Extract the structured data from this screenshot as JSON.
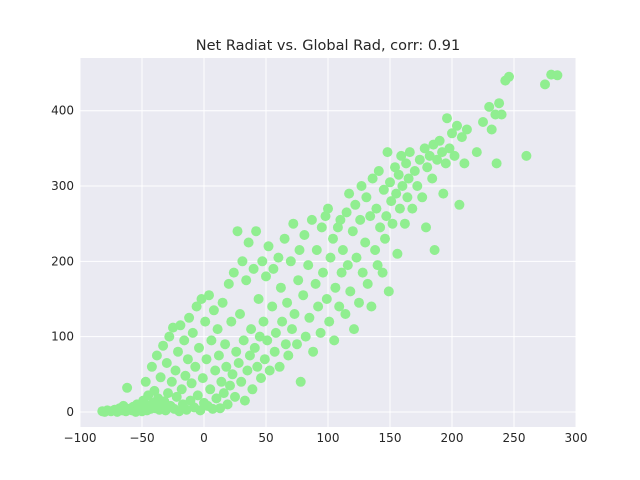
{
  "chart_data": {
    "type": "scatter",
    "title": "Net Radiat vs. Global Rad, corr: 0.91",
    "xlabel": "",
    "ylabel": "",
    "xlim": [
      -100,
      300
    ],
    "ylim": [
      -20,
      470
    ],
    "x_ticks": [
      -100,
      -50,
      0,
      50,
      100,
      150,
      200,
      250,
      300
    ],
    "y_ticks": [
      0,
      100,
      200,
      300,
      400
    ],
    "x_tick_labels": [
      "−100",
      "−50",
      "0",
      "50",
      "100",
      "150",
      "200",
      "250",
      "300"
    ],
    "y_tick_labels": [
      "0",
      "100",
      "200",
      "300",
      "400"
    ],
    "grid": true,
    "background": "#eaeaf2",
    "grid_color": "#ffffff",
    "point_color": "#90ee90",
    "series": [
      {
        "points": [
          [
            -82,
            1
          ],
          [
            -80,
            0
          ],
          [
            -78,
            2
          ],
          [
            -75,
            1
          ],
          [
            -72,
            3
          ],
          [
            -70,
            0
          ],
          [
            -68,
            5
          ],
          [
            -66,
            2
          ],
          [
            -65,
            8
          ],
          [
            -63,
            1
          ],
          [
            -62,
            32
          ],
          [
            -60,
            4
          ],
          [
            -58,
            2
          ],
          [
            -57,
            7
          ],
          [
            -55,
            0
          ],
          [
            -54,
            10
          ],
          [
            -52,
            3
          ],
          [
            -50,
            1
          ],
          [
            -49,
            15
          ],
          [
            -48,
            6
          ],
          [
            -47,
            40
          ],
          [
            -46,
            2
          ],
          [
            -45,
            22
          ],
          [
            -44,
            9
          ],
          [
            -43,
            4
          ],
          [
            -42,
            60
          ],
          [
            -41,
            12
          ],
          [
            -40,
            28
          ],
          [
            -39,
            5
          ],
          [
            -38,
            75
          ],
          [
            -37,
            18
          ],
          [
            -36,
            3
          ],
          [
            -35,
            46
          ],
          [
            -34,
            9
          ],
          [
            -33,
            88
          ],
          [
            -32,
            14
          ],
          [
            -31,
            2
          ],
          [
            -30,
            65
          ],
          [
            -29,
            25
          ],
          [
            -28,
            100
          ],
          [
            -27,
            8
          ],
          [
            -26,
            40
          ],
          [
            -25,
            112
          ],
          [
            -24,
            4
          ],
          [
            -23,
            55
          ],
          [
            -22,
            20
          ],
          [
            -21,
            80
          ],
          [
            -20,
            1
          ],
          [
            -19,
            115
          ],
          [
            -18,
            30
          ],
          [
            -17,
            10
          ],
          [
            -16,
            95
          ],
          [
            -15,
            48
          ],
          [
            -14,
            3
          ],
          [
            -13,
            70
          ],
          [
            -12,
            125
          ],
          [
            -11,
            15
          ],
          [
            -10,
            38
          ],
          [
            -9,
            105
          ],
          [
            -8,
            6
          ],
          [
            -7,
            60
          ],
          [
            -6,
            140
          ],
          [
            -5,
            22
          ],
          [
            -4,
            85
          ],
          [
            -3,
            2
          ],
          [
            -2,
            150
          ],
          [
            -1,
            45
          ],
          [
            0,
            12
          ],
          [
            1,
            120
          ],
          [
            2,
            70
          ],
          [
            3,
            8
          ],
          [
            4,
            155
          ],
          [
            5,
            30
          ],
          [
            6,
            95
          ],
          [
            7,
            4
          ],
          [
            8,
            135
          ],
          [
            9,
            55
          ],
          [
            10,
            18
          ],
          [
            11,
            110
          ],
          [
            12,
            75
          ],
          [
            13,
            5
          ],
          [
            14,
            40
          ],
          [
            15,
            145
          ],
          [
            16,
            25
          ],
          [
            17,
            90
          ],
          [
            18,
            60
          ],
          [
            19,
            10
          ],
          [
            20,
            170
          ],
          [
            21,
            35
          ],
          [
            22,
            120
          ],
          [
            23,
            50
          ],
          [
            24,
            185
          ],
          [
            25,
            20
          ],
          [
            26,
            80
          ],
          [
            27,
            240
          ],
          [
            28,
            65
          ],
          [
            29,
            130
          ],
          [
            30,
            40
          ],
          [
            31,
            200
          ],
          [
            32,
            95
          ],
          [
            33,
            15
          ],
          [
            34,
            175
          ],
          [
            35,
            55
          ],
          [
            36,
            225
          ],
          [
            37,
            75
          ],
          [
            38,
            110
          ],
          [
            39,
            30
          ],
          [
            40,
            190
          ],
          [
            41,
            85
          ],
          [
            42,
            240
          ],
          [
            43,
            60
          ],
          [
            44,
            150
          ],
          [
            45,
            100
          ],
          [
            46,
            45
          ],
          [
            47,
            200
          ],
          [
            48,
            120
          ],
          [
            49,
            70
          ],
          [
            50,
            180
          ],
          [
            51,
            95
          ],
          [
            52,
            220
          ],
          [
            53,
            55
          ],
          [
            55,
            140
          ],
          [
            56,
            190
          ],
          [
            57,
            80
          ],
          [
            58,
            105
          ],
          [
            60,
            205
          ],
          [
            61,
            60
          ],
          [
            62,
            165
          ],
          [
            63,
            120
          ],
          [
            65,
            230
          ],
          [
            66,
            90
          ],
          [
            67,
            145
          ],
          [
            68,
            75
          ],
          [
            70,
            200
          ],
          [
            71,
            110
          ],
          [
            72,
            250
          ],
          [
            73,
            130
          ],
          [
            75,
            90
          ],
          [
            76,
            175
          ],
          [
            77,
            215
          ],
          [
            78,
            40
          ],
          [
            80,
            155
          ],
          [
            81,
            235
          ],
          [
            82,
            100
          ],
          [
            84,
            195
          ],
          [
            85,
            125
          ],
          [
            87,
            255
          ],
          [
            88,
            80
          ],
          [
            90,
            170
          ],
          [
            91,
            215
          ],
          [
            92,
            140
          ],
          [
            94,
            105
          ],
          [
            95,
            245
          ],
          [
            96,
            185
          ],
          [
            98,
            260
          ],
          [
            99,
            150
          ],
          [
            100,
            270
          ],
          [
            101,
            120
          ],
          [
            102,
            205
          ],
          [
            104,
            230
          ],
          [
            105,
            95
          ],
          [
            106,
            165
          ],
          [
            108,
            245
          ],
          [
            109,
            140
          ],
          [
            110,
            255
          ],
          [
            111,
            185
          ],
          [
            112,
            215
          ],
          [
            114,
            130
          ],
          [
            115,
            265
          ],
          [
            116,
            195
          ],
          [
            117,
            290
          ],
          [
            118,
            160
          ],
          [
            120,
            240
          ],
          [
            121,
            110
          ],
          [
            122,
            275
          ],
          [
            123,
            205
          ],
          [
            125,
            145
          ],
          [
            126,
            255
          ],
          [
            127,
            300
          ],
          [
            128,
            185
          ],
          [
            130,
            225
          ],
          [
            131,
            285
          ],
          [
            132,
            170
          ],
          [
            134,
            260
          ],
          [
            135,
            140
          ],
          [
            136,
            310
          ],
          [
            138,
            215
          ],
          [
            139,
            270
          ],
          [
            140,
            195
          ],
          [
            141,
            320
          ],
          [
            142,
            245
          ],
          [
            144,
            185
          ],
          [
            145,
            295
          ],
          [
            146,
            230
          ],
          [
            147,
            260
          ],
          [
            148,
            345
          ],
          [
            149,
            160
          ],
          [
            150,
            305
          ],
          [
            151,
            280
          ],
          [
            152,
            250
          ],
          [
            154,
            325
          ],
          [
            155,
            290
          ],
          [
            156,
            210
          ],
          [
            157,
            315
          ],
          [
            158,
            270
          ],
          [
            159,
            340
          ],
          [
            160,
            300
          ],
          [
            162,
            250
          ],
          [
            163,
            330
          ],
          [
            164,
            285
          ],
          [
            165,
            310
          ],
          [
            166,
            345
          ],
          [
            168,
            270
          ],
          [
            170,
            320
          ],
          [
            172,
            300
          ],
          [
            174,
            335
          ],
          [
            176,
            285
          ],
          [
            178,
            350
          ],
          [
            179,
            245
          ],
          [
            180,
            325
          ],
          [
            182,
            340
          ],
          [
            184,
            310
          ],
          [
            185,
            355
          ],
          [
            186,
            215
          ],
          [
            188,
            335
          ],
          [
            190,
            360
          ],
          [
            192,
            345
          ],
          [
            193,
            290
          ],
          [
            195,
            330
          ],
          [
            196,
            390
          ],
          [
            198,
            350
          ],
          [
            200,
            370
          ],
          [
            202,
            340
          ],
          [
            204,
            380
          ],
          [
            206,
            275
          ],
          [
            208,
            365
          ],
          [
            210,
            330
          ],
          [
            212,
            375
          ],
          [
            220,
            345
          ],
          [
            225,
            385
          ],
          [
            230,
            405
          ],
          [
            232,
            375
          ],
          [
            235,
            395
          ],
          [
            236,
            330
          ],
          [
            238,
            410
          ],
          [
            240,
            395
          ],
          [
            243,
            440
          ],
          [
            246,
            445
          ],
          [
            260,
            340
          ],
          [
            275,
            435
          ],
          [
            280,
            448
          ],
          [
            285,
            447
          ]
        ]
      }
    ]
  }
}
